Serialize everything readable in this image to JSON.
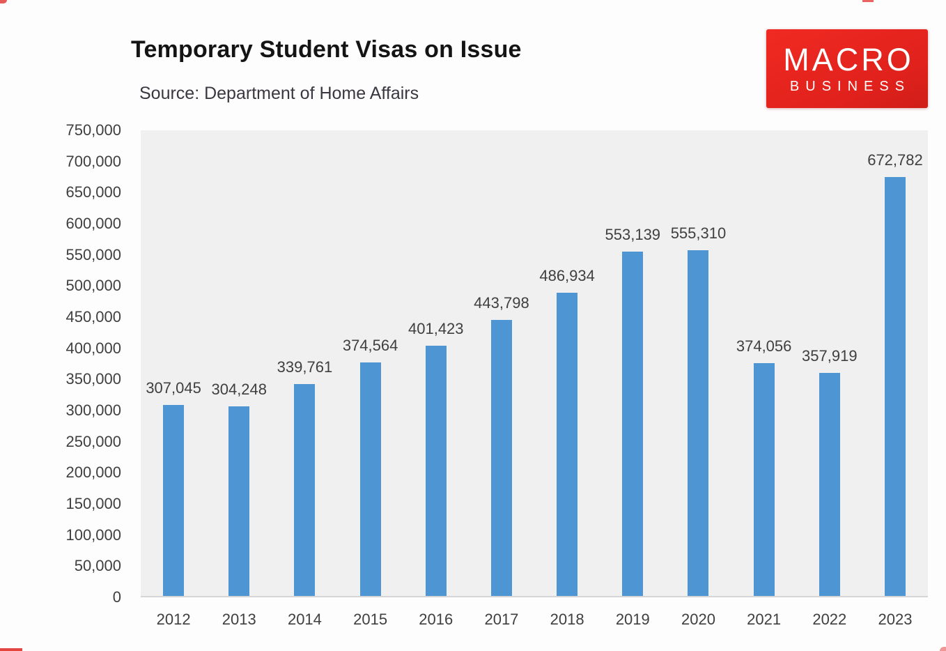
{
  "header": {
    "title": "Temporary Student Visas on Issue",
    "source": "Source: Department of Home Affairs"
  },
  "logo": {
    "line1": "MACRO",
    "line2": "BUSINESS",
    "bg_color": "#e6251f",
    "text_color": "#ffffff"
  },
  "colors": {
    "bar": "#4e96d3",
    "plot_background": "#f0f0f1",
    "page_background": "#fdfdfe",
    "label_text": "#3f3f3f",
    "title_text": "#141414",
    "axis_line": "#d5d5d7",
    "edge_red": "#e0312d"
  },
  "chart_data": {
    "type": "bar",
    "title": "Temporary Student Visas on Issue",
    "subtitle": "Source: Department of Home Affairs",
    "categories": [
      "2012",
      "2013",
      "2014",
      "2015",
      "2016",
      "2017",
      "2018",
      "2019",
      "2020",
      "2021",
      "2022",
      "2023"
    ],
    "values": [
      307045,
      304248,
      339761,
      374564,
      401423,
      443798,
      486934,
      553139,
      555310,
      374056,
      357919,
      672782
    ],
    "data_labels": [
      "307,045",
      "304,248",
      "339,761",
      "374,564",
      "401,423",
      "443,798",
      "486,934",
      "553,139",
      "555,310",
      "374,056",
      "357,919",
      "672,782"
    ],
    "xlabel": "",
    "ylabel": "",
    "ylim": [
      0,
      750000
    ],
    "ytick_step": 50000,
    "yticks": [
      "750,000",
      "700,000",
      "650,000",
      "600,000",
      "550,000",
      "500,000",
      "450,000",
      "400,000",
      "350,000",
      "300,000",
      "250,000",
      "200,000",
      "150,000",
      "100,000",
      "50,000",
      "0"
    ],
    "grid": false,
    "legend": false,
    "bar_color": "#4e96d3"
  }
}
